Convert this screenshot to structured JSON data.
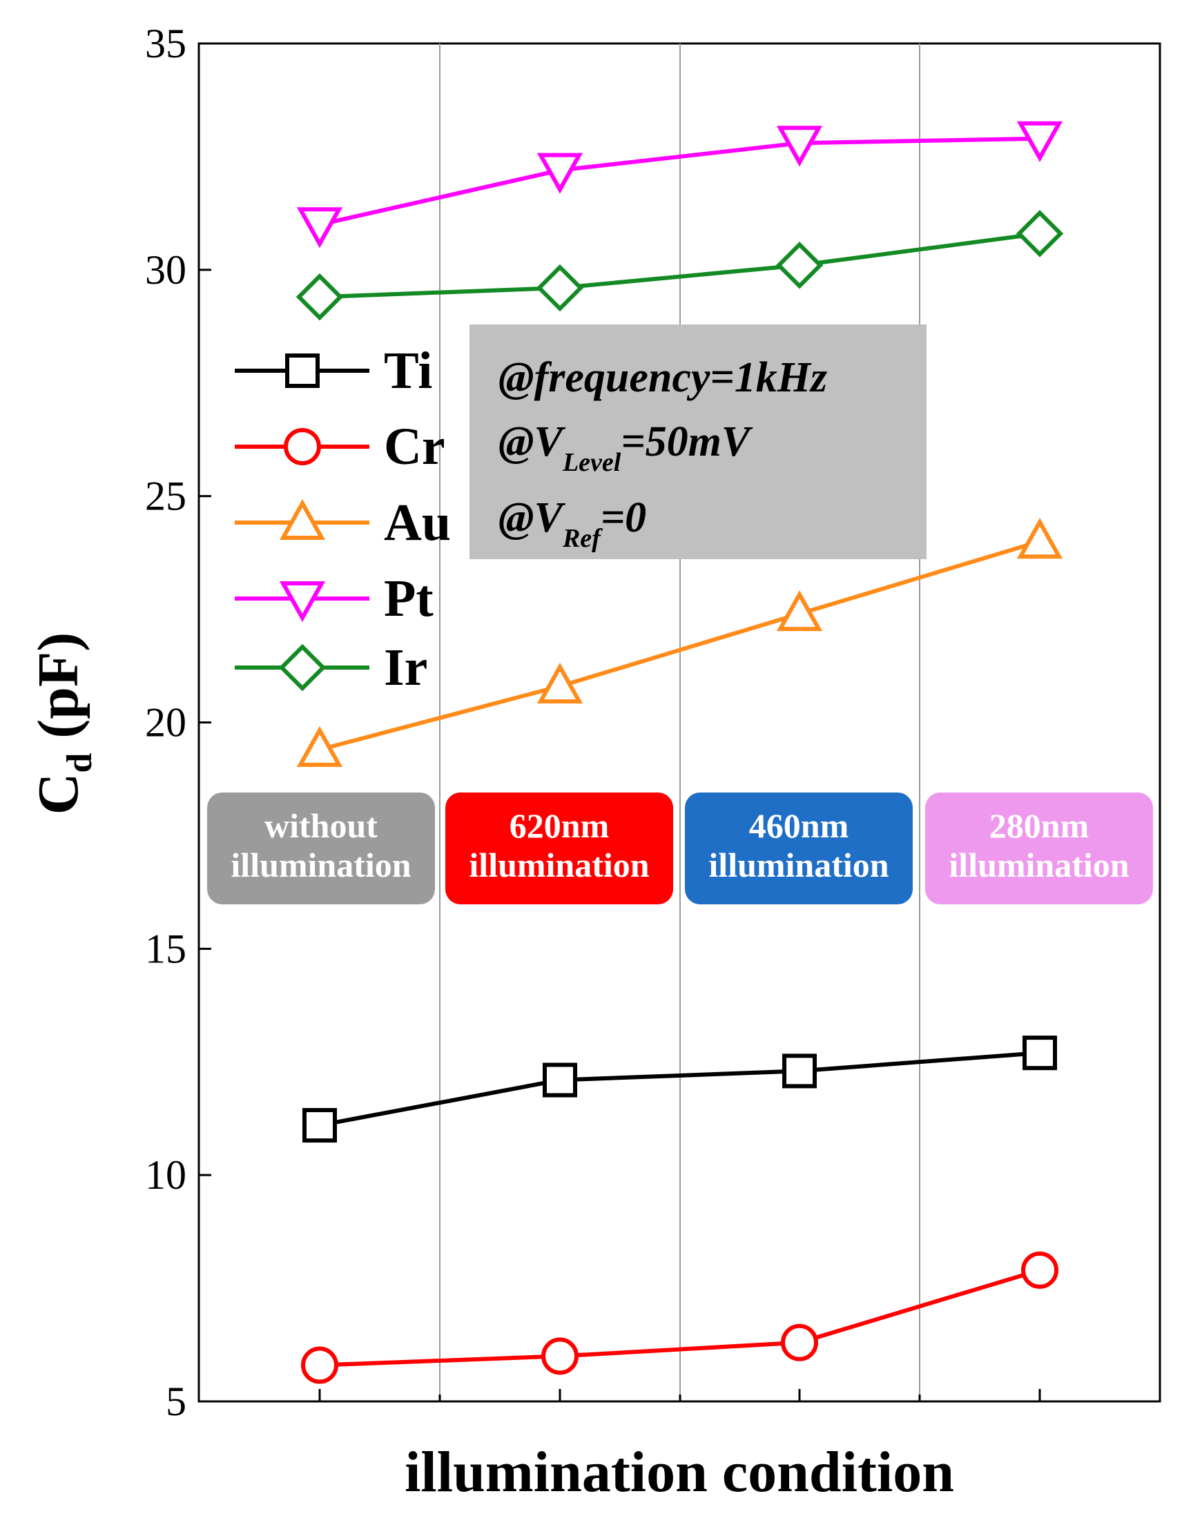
{
  "chart_data": {
    "type": "line",
    "xlabel": "illumination condition",
    "ylabel": {
      "base": "C",
      "sub": "d",
      "rest": " (pF)"
    },
    "ylim": [
      5,
      35
    ],
    "yticks": [
      5,
      10,
      15,
      20,
      25,
      30,
      35
    ],
    "categories": [
      "without illumination",
      "620nm illumination",
      "460nm illumination",
      "280nm illumination"
    ],
    "series": [
      {
        "name": "Ti",
        "color": "#000000",
        "marker": "square",
        "values": [
          11.1,
          12.1,
          12.3,
          12.7
        ]
      },
      {
        "name": "Cr",
        "color": "#ff0000",
        "marker": "circle",
        "values": [
          5.8,
          6.0,
          6.3,
          7.9
        ]
      },
      {
        "name": "Au",
        "color": "#ff8c1a",
        "marker": "triangle-up",
        "values": [
          19.4,
          20.8,
          22.4,
          24.0
        ]
      },
      {
        "name": "Pt",
        "color": "#ff00ff",
        "marker": "triangle-down",
        "values": [
          31.0,
          32.2,
          32.8,
          32.9
        ]
      },
      {
        "name": "Ir",
        "color": "#138a24",
        "marker": "diamond",
        "values": [
          29.4,
          29.6,
          30.1,
          30.8
        ]
      }
    ],
    "condition_labels": [
      {
        "line1": "without",
        "line2": "illumination",
        "color": "#9b9b9b"
      },
      {
        "line1": "620nm",
        "line2": "illumination",
        "color": "#ff0000"
      },
      {
        "line1": "460nm",
        "line2": "illumination",
        "color": "#1f6fc6"
      },
      {
        "line1": "280nm",
        "line2": "illumination",
        "color": "#ee99ee"
      }
    ],
    "annotation": {
      "line1": "@frequency=1kHz",
      "line2": {
        "pre": "@V",
        "sub": "Level",
        "post": "=50mV"
      },
      "line3": {
        "pre": "@V",
        "sub": "Ref",
        "post": "=0"
      },
      "background": "#c0c0c0"
    }
  }
}
